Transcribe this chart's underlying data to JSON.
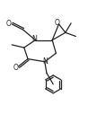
{
  "bg_color": "#ffffff",
  "line_color": "#222222",
  "lw": 0.9,
  "figsize": [
    1.08,
    1.27
  ],
  "dpi": 100,
  "xlim": [
    0,
    10
  ],
  "ylim": [
    0,
    12
  ]
}
